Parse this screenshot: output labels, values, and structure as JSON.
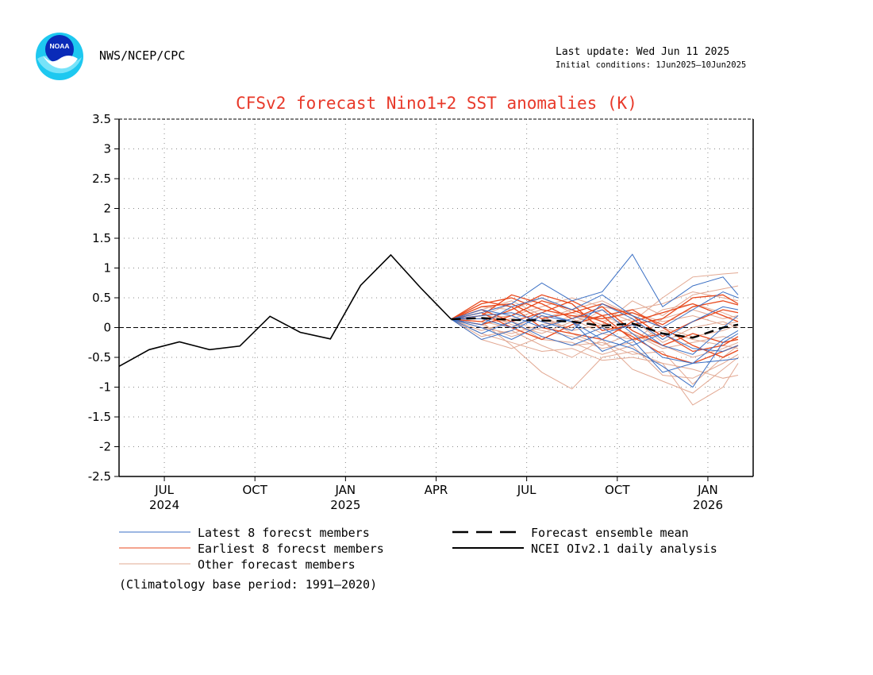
{
  "header": {
    "agency": "NWS/NCEP/CPC",
    "last_update": "Last update: Wed Jun 11 2025",
    "initial_conditions": "Initial conditions: 1Jun2025—10Jun2025",
    "logo_text": "NOAA"
  },
  "colors": {
    "latest": "#3a6fc4",
    "earliest": "#e8491d",
    "other": "#e2a892",
    "observed": "#000000",
    "title": "#e8392a"
  },
  "chart_data": {
    "type": "line",
    "title": "CFSv2 forecast Nino1+2 SST anomalies (K)",
    "xlabel": "",
    "ylabel": "",
    "ylim": [
      -2.5,
      3.5
    ],
    "yticks": [
      3.5,
      3,
      2.5,
      2,
      1.5,
      1,
      0.5,
      0,
      -0.5,
      -1,
      -1.5,
      -2,
      -2.5
    ],
    "xlim": [
      -0.5,
      20.5
    ],
    "xticks": [
      {
        "x": 1,
        "label": "JUL",
        "year": "2024"
      },
      {
        "x": 4,
        "label": "OCT",
        "year": ""
      },
      {
        "x": 7,
        "label": "JAN",
        "year": "2025"
      },
      {
        "x": 10,
        "label": "APR",
        "year": ""
      },
      {
        "x": 13,
        "label": "JUL",
        "year": ""
      },
      {
        "x": 16,
        "label": "OCT",
        "year": ""
      },
      {
        "x": 19,
        "label": "JAN",
        "year": "2026"
      }
    ],
    "grid": true,
    "zero_line": true,
    "observed": {
      "name": "NCEI OIv2.1 daily analysis",
      "x": [
        -0.5,
        0.5,
        1.5,
        2.5,
        3.5,
        4.5,
        5.5,
        6.5,
        7.5,
        8.5,
        9.5,
        10.5
      ],
      "y": [
        -0.65,
        -0.37,
        -0.24,
        -0.37,
        -0.31,
        0.19,
        -0.08,
        -0.19,
        0.71,
        1.22,
        0.66,
        0.14
      ]
    },
    "ensemble_mean": {
      "name": "Forecast ensemble mean",
      "x": [
        10.5,
        11.5,
        12.5,
        13.5,
        14.5,
        15.5,
        16.5,
        17.5,
        18.5,
        19.5,
        20.0
      ],
      "y": [
        0.14,
        0.16,
        0.13,
        0.12,
        0.1,
        0.03,
        0.07,
        -0.1,
        -0.17,
        0.0,
        0.05
      ]
    },
    "member_x": [
      10.5,
      11.5,
      12.5,
      13.5,
      14.5,
      15.5,
      16.5,
      17.5,
      18.5,
      19.5,
      20.0
    ],
    "latest_members": [
      [
        0.14,
        0.25,
        0.4,
        0.75,
        0.45,
        0.6,
        1.23,
        0.35,
        0.7,
        0.85,
        0.55
      ],
      [
        0.14,
        -0.2,
        -0.05,
        0.2,
        0.1,
        -0.2,
        -0.35,
        -0.65,
        -1.0,
        -0.25,
        -0.1
      ],
      [
        0.14,
        0.3,
        0.2,
        0.0,
        0.15,
        0.3,
        -0.1,
        -0.5,
        -0.6,
        -0.55,
        -0.52
      ],
      [
        0.14,
        0.05,
        0.35,
        0.5,
        0.3,
        0.55,
        0.2,
        0.0,
        0.3,
        0.6,
        0.5
      ],
      [
        0.14,
        -0.1,
        0.1,
        -0.15,
        -0.3,
        -0.1,
        0.05,
        -0.3,
        -0.45,
        0.0,
        0.2
      ],
      [
        0.14,
        0.15,
        0.0,
        0.25,
        0.1,
        -0.4,
        -0.2,
        -0.75,
        -0.6,
        -0.2,
        -0.05
      ],
      [
        0.14,
        0.2,
        0.25,
        0.1,
        -0.05,
        0.4,
        0.15,
        -0.2,
        0.1,
        0.35,
        0.3
      ],
      [
        0.14,
        0.0,
        -0.2,
        0.05,
        -0.2,
        0.0,
        -0.3,
        -0.1,
        -0.35,
        -0.4,
        -0.3
      ]
    ],
    "earliest_members": [
      [
        0.14,
        0.4,
        0.5,
        0.3,
        0.2,
        0.15,
        0.25,
        0.05,
        0.35,
        0.45,
        0.38
      ],
      [
        0.14,
        0.2,
        0.55,
        0.4,
        0.15,
        0.35,
        -0.05,
        -0.3,
        -0.1,
        -0.25,
        -0.2
      ],
      [
        0.14,
        0.3,
        0.1,
        0.25,
        0.45,
        0.2,
        0.3,
        0.0,
        -0.3,
        -0.5,
        -0.38
      ],
      [
        0.14,
        0.45,
        0.35,
        0.0,
        -0.1,
        -0.2,
        0.1,
        0.25,
        0.4,
        0.2,
        0.1
      ],
      [
        0.14,
        0.05,
        0.2,
        0.45,
        0.3,
        0.1,
        -0.15,
        -0.45,
        -0.6,
        -0.4,
        -0.3
      ],
      [
        0.14,
        0.35,
        0.4,
        0.15,
        0.25,
        0.4,
        0.2,
        -0.15,
        0.1,
        0.3,
        0.25
      ],
      [
        0.14,
        0.25,
        0.0,
        -0.2,
        0.05,
        0.2,
        -0.2,
        -0.1,
        -0.4,
        -0.3,
        -0.15
      ],
      [
        0.14,
        0.1,
        0.3,
        0.55,
        0.4,
        -0.05,
        0.05,
        0.15,
        0.5,
        0.55,
        0.4
      ]
    ],
    "other_members": [
      [
        0.14,
        0.1,
        -0.3,
        -0.75,
        -1.03,
        -0.5,
        -0.4,
        -0.6,
        -1.3,
        -1.0,
        -0.6
      ],
      [
        0.14,
        0.2,
        0.25,
        0.1,
        0.0,
        0.3,
        0.1,
        0.5,
        0.85,
        0.9,
        0.92
      ],
      [
        0.14,
        -0.15,
        -0.05,
        -0.3,
        -0.5,
        -0.2,
        -0.7,
        -0.9,
        -1.1,
        -0.7,
        -0.5
      ],
      [
        0.14,
        0.05,
        0.15,
        0.3,
        0.2,
        0.05,
        0.45,
        0.2,
        0.55,
        0.65,
        0.7
      ],
      [
        0.14,
        0.3,
        0.45,
        0.2,
        -0.1,
        -0.3,
        -0.1,
        -0.35,
        -0.25,
        -0.15,
        -0.2
      ],
      [
        0.14,
        -0.05,
        0.1,
        -0.2,
        -0.25,
        -0.45,
        -0.3,
        -0.8,
        -0.85,
        -0.6,
        -0.45
      ],
      [
        0.14,
        0.15,
        0.2,
        0.35,
        0.5,
        0.35,
        0.25,
        0.1,
        0.2,
        0.05,
        0.1
      ],
      [
        0.14,
        0.0,
        -0.1,
        0.05,
        0.15,
        -0.1,
        -0.2,
        -0.05,
        -0.2,
        -0.3,
        -0.35
      ],
      [
        0.14,
        0.25,
        0.05,
        -0.1,
        0.1,
        0.2,
        0.0,
        0.3,
        0.4,
        0.25,
        0.15
      ],
      [
        0.14,
        -0.1,
        -0.25,
        -0.4,
        -0.35,
        -0.55,
        -0.5,
        -0.6,
        -0.7,
        -0.85,
        -0.8
      ],
      [
        0.14,
        0.35,
        0.3,
        0.5,
        0.25,
        0.1,
        0.3,
        0.4,
        0.6,
        0.5,
        0.45
      ],
      [
        0.14,
        0.1,
        0.0,
        0.2,
        -0.05,
        0.05,
        0.15,
        -0.25,
        0.0,
        0.1,
        0.0
      ],
      [
        0.14,
        -0.2,
        -0.35,
        -0.15,
        -0.3,
        -0.25,
        -0.45,
        -0.4,
        -0.95,
        -0.5,
        -0.3
      ],
      [
        0.14,
        0.2,
        0.4,
        0.15,
        0.3,
        0.45,
        0.2,
        0.0,
        -0.15,
        -0.05,
        0.05
      ],
      [
        0.14,
        0.05,
        -0.15,
        0.0,
        0.2,
        0.0,
        -0.1,
        -0.3,
        -0.5,
        -0.35,
        -0.25
      ],
      [
        0.14,
        0.15,
        0.1,
        -0.05,
        -0.15,
        -0.35,
        -0.25,
        0.15,
        0.3,
        0.15,
        0.2
      ]
    ],
    "legend": {
      "placement": "bottom",
      "entries": [
        {
          "key": "latest",
          "label": "Latest 8 forecst members",
          "style": "thin"
        },
        {
          "key": "earliest",
          "label": "Earliest 8 forecst members",
          "style": "thin"
        },
        {
          "key": "other",
          "label": "Other forecast members",
          "style": "thin"
        },
        {
          "key": "ensemble_mean",
          "label": "Forecast ensemble mean",
          "style": "dashed"
        },
        {
          "key": "observed",
          "label": "NCEI OIv2.1 daily analysis",
          "style": "solid"
        }
      ]
    },
    "note": "(Climatology base period: 1991—2020)"
  }
}
